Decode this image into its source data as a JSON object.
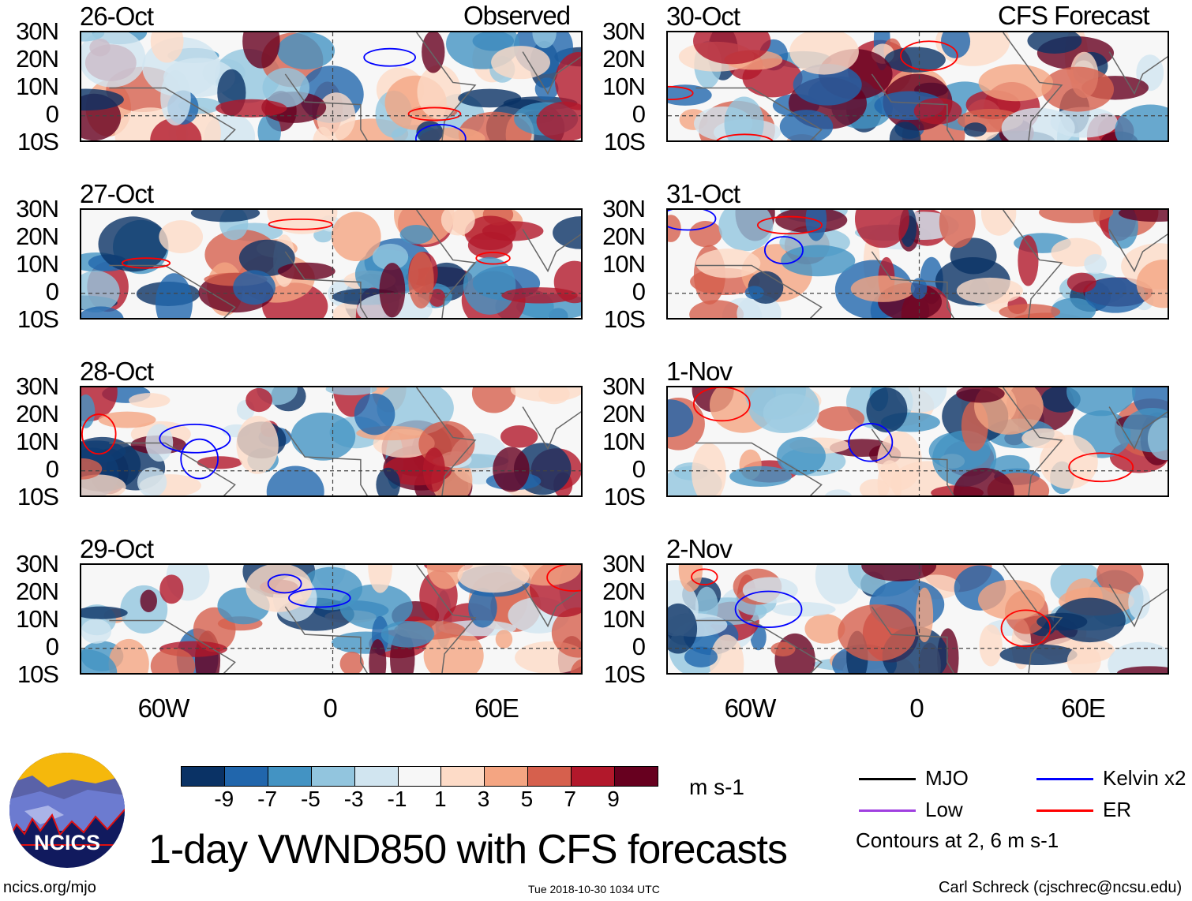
{
  "figure": {
    "title": "1-day VWND850 with CFS forecasts",
    "observed_label": "Observed",
    "forecast_label": "CFS Forecast",
    "units": "m s-1",
    "footer_left": "ncics.org/mjo",
    "footer_center": "Tue 2018-10-30 1034 UTC",
    "footer_right": "Carl Schreck (cjschrec@ncsu.edu)",
    "logo_text": "NCICS"
  },
  "panels": {
    "observed": [
      {
        "date": "26-Oct"
      },
      {
        "date": "27-Oct"
      },
      {
        "date": "28-Oct"
      },
      {
        "date": "29-Oct"
      }
    ],
    "forecast": [
      {
        "date": "30-Oct"
      },
      {
        "date": "31-Oct"
      },
      {
        "date": "1-Nov"
      },
      {
        "date": "2-Nov"
      }
    ]
  },
  "axes": {
    "lat_labels": [
      "30N",
      "20N",
      "10N",
      "0",
      "10S"
    ],
    "lon_labels": [
      "60W",
      "0",
      "60E"
    ],
    "lon_range": [
      -90,
      90
    ],
    "lat_range": [
      -10,
      30
    ]
  },
  "colorbar": {
    "labels": [
      "-9",
      "-7",
      "-5",
      "-3",
      "-1",
      "1",
      "3",
      "5",
      "7",
      "9"
    ],
    "colors": [
      "#0a3265",
      "#2166ac",
      "#4393c3",
      "#92c5de",
      "#d1e5f0",
      "#f7f7f7",
      "#fddbc7",
      "#f4a582",
      "#d6604d",
      "#b2182b",
      "#67001f"
    ]
  },
  "legend": {
    "items": [
      {
        "label": "MJO",
        "color": "#000000"
      },
      {
        "label": "Kelvin x2",
        "color": "#0000ff"
      },
      {
        "label": "Low",
        "color": "#a040e0"
      },
      {
        "label": "ER",
        "color": "#ff0000"
      }
    ],
    "note": "Contours at 2, 6 m s-1"
  }
}
